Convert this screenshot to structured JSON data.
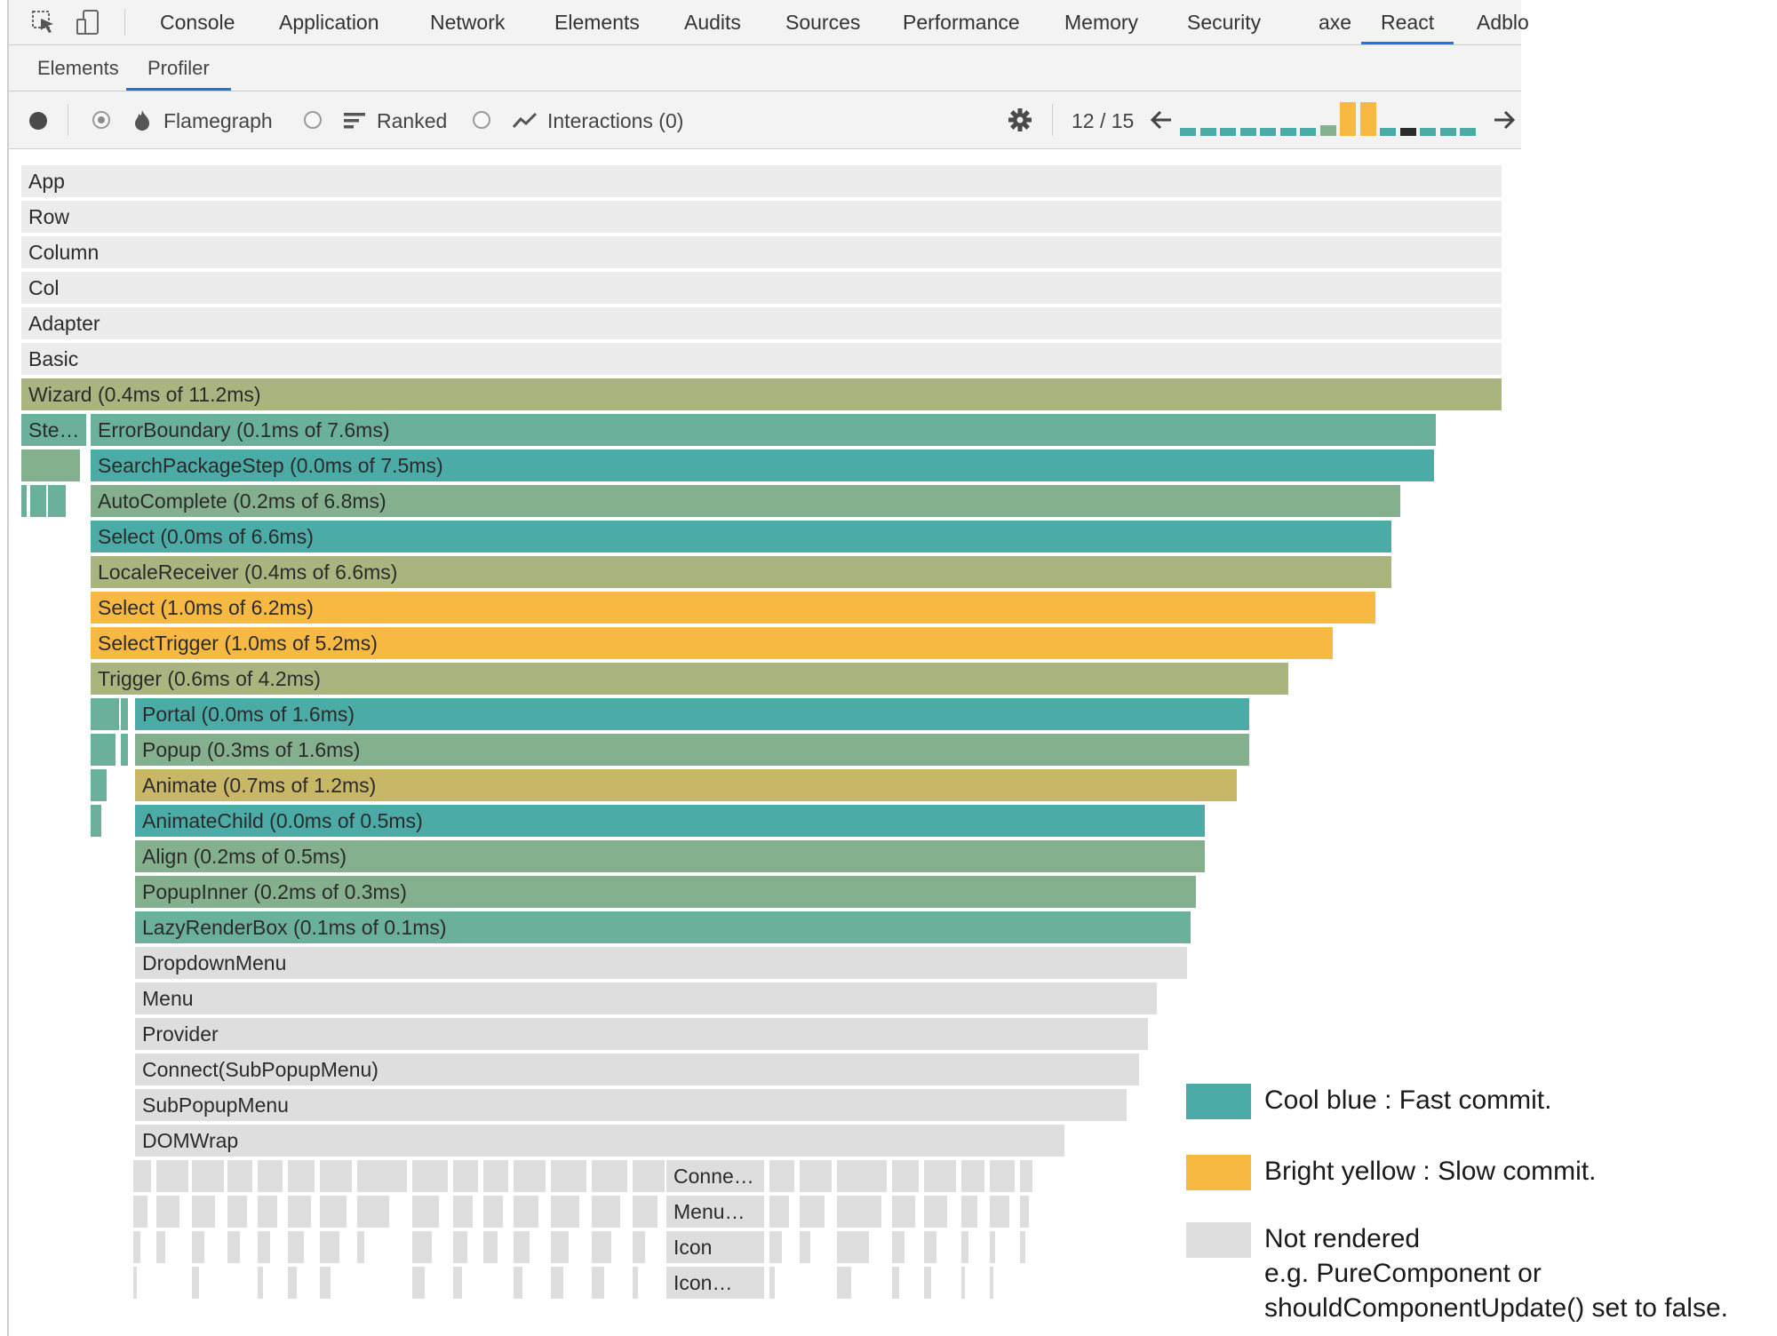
{
  "devtools": {
    "main_tabs": [
      {
        "label": "Console"
      },
      {
        "label": "Application"
      },
      {
        "label": "Network"
      },
      {
        "label": "Elements"
      },
      {
        "label": "Audits"
      },
      {
        "label": "Sources"
      },
      {
        "label": "Performance"
      },
      {
        "label": "Memory"
      },
      {
        "label": "Security"
      },
      {
        "label": "axe"
      },
      {
        "label": "React",
        "active": true
      },
      {
        "label": "Adblo"
      }
    ],
    "sub_tabs": [
      {
        "label": "Elements"
      },
      {
        "label": "Profiler",
        "active": true
      }
    ]
  },
  "profiler": {
    "record_icon": "record-icon",
    "modes": [
      {
        "label": "Flamegraph",
        "icon": "flame-icon",
        "selected": true
      },
      {
        "label": "Ranked",
        "icon": "ranked-icon",
        "selected": false
      },
      {
        "label": "Interactions (0)",
        "icon": "interactions-icon",
        "selected": false
      }
    ],
    "settings_icon": "gear-icon",
    "commit_counter": "12 / 15",
    "commits": [
      {
        "status": "fast"
      },
      {
        "status": "fast"
      },
      {
        "status": "fast"
      },
      {
        "status": "fast"
      },
      {
        "status": "fast"
      },
      {
        "status": "fast"
      },
      {
        "status": "fast"
      },
      {
        "status": "medium"
      },
      {
        "status": "slow"
      },
      {
        "status": "slow"
      },
      {
        "status": "fast"
      },
      {
        "status": "selected"
      },
      {
        "status": "fast"
      },
      {
        "status": "fast"
      },
      {
        "status": "fast"
      }
    ]
  },
  "colors": {
    "fast": "#4aaba7",
    "fast_mid": "#6bb09c",
    "medium": "#85b08e",
    "olive": "#a9b57f",
    "gold": "#c9b768",
    "slow": "#f8b943",
    "not_rendered": "#dedede",
    "not_rendered_light": "#ececec",
    "selected_commit": "#2b2b2b"
  },
  "flamegraph": {
    "rows": [
      [
        {
          "label": "App",
          "color": "not_rendered_light"
        }
      ],
      [
        {
          "label": "Row",
          "color": "not_rendered_light"
        }
      ],
      [
        {
          "label": "Column",
          "color": "not_rendered_light"
        }
      ],
      [
        {
          "label": "Col",
          "color": "not_rendered_light"
        }
      ],
      [
        {
          "label": "Adapter",
          "color": "not_rendered_light"
        }
      ],
      [
        {
          "label": "Basic",
          "color": "not_rendered_light"
        }
      ],
      [
        {
          "label": "Wizard (0.4ms of 11.2ms)",
          "color": "olive"
        }
      ],
      [
        {
          "label": "Ste…",
          "color": "fast_mid"
        },
        {
          "label": "ErrorBoundary (0.1ms of 7.6ms)",
          "color": "fast_mid"
        }
      ],
      [
        {
          "label": "",
          "color": "medium"
        },
        {
          "label": "SearchPackageStep (0.0ms of 7.5ms)",
          "color": "fast"
        }
      ],
      [
        {
          "label": "",
          "color": "fast_mid"
        },
        {
          "label": "",
          "color": "fast_mid"
        },
        {
          "label": "",
          "color": "fast_mid"
        },
        {
          "label": "AutoComplete (0.2ms of 6.8ms)",
          "color": "medium"
        }
      ],
      [
        {
          "label": "Select (0.0ms of 6.6ms)",
          "color": "fast"
        }
      ],
      [
        {
          "label": "LocaleReceiver (0.4ms of 6.6ms)",
          "color": "olive"
        }
      ],
      [
        {
          "label": "Select (1.0ms of 6.2ms)",
          "color": "slow"
        }
      ],
      [
        {
          "label": "SelectTrigger (1.0ms of 5.2ms)",
          "color": "slow"
        }
      ],
      [
        {
          "label": "Trigger (0.6ms of 4.2ms)",
          "color": "olive"
        }
      ],
      [
        {
          "label": "",
          "color": "fast_mid"
        },
        {
          "label": "",
          "color": "fast_mid"
        },
        {
          "label": "Portal (0.0ms of 1.6ms)",
          "color": "fast"
        }
      ],
      [
        {
          "label": "",
          "color": "fast_mid"
        },
        {
          "label": "",
          "color": "fast_mid"
        },
        {
          "label": "Popup (0.3ms of 1.6ms)",
          "color": "medium"
        }
      ],
      [
        {
          "label": "",
          "color": "fast_mid"
        },
        {
          "label": "Animate (0.7ms of 1.2ms)",
          "color": "gold"
        }
      ],
      [
        {
          "label": "",
          "color": "fast_mid"
        },
        {
          "label": "AnimateChild (0.0ms of 0.5ms)",
          "color": "fast"
        }
      ],
      [
        {
          "label": "Align (0.2ms of 0.5ms)",
          "color": "medium"
        }
      ],
      [
        {
          "label": "PopupInner (0.2ms of 0.3ms)",
          "color": "medium"
        }
      ],
      [
        {
          "label": "LazyRenderBox (0.1ms of 0.1ms)",
          "color": "fast_mid"
        }
      ],
      [
        {
          "label": "DropdownMenu",
          "color": "not_rendered"
        }
      ],
      [
        {
          "label": "Menu",
          "color": "not_rendered"
        }
      ],
      [
        {
          "label": "Provider",
          "color": "not_rendered"
        }
      ],
      [
        {
          "label": "Connect(SubPopupMenu)",
          "color": "not_rendered"
        }
      ],
      [
        {
          "label": "SubPopupMenu",
          "color": "not_rendered"
        }
      ],
      [
        {
          "label": "DOMWrap",
          "color": "not_rendered"
        }
      ],
      [
        {
          "label": "Conne…",
          "color": "not_rendered"
        }
      ],
      [
        {
          "label": "Menu…",
          "color": "not_rendered"
        }
      ],
      [
        {
          "label": "Icon",
          "color": "not_rendered"
        }
      ],
      [
        {
          "label": "Icon…",
          "color": "not_rendered"
        }
      ]
    ]
  },
  "legend": [
    {
      "color": "fast",
      "lines": [
        "Cool blue : Fast commit."
      ]
    },
    {
      "color": "slow",
      "lines": [
        "Bright yellow : Slow commit."
      ]
    },
    {
      "color": "not_rendered",
      "lines": [
        "Not rendered",
        "e.g. PureComponent or",
        "shouldComponentUpdate() set to false."
      ]
    }
  ]
}
